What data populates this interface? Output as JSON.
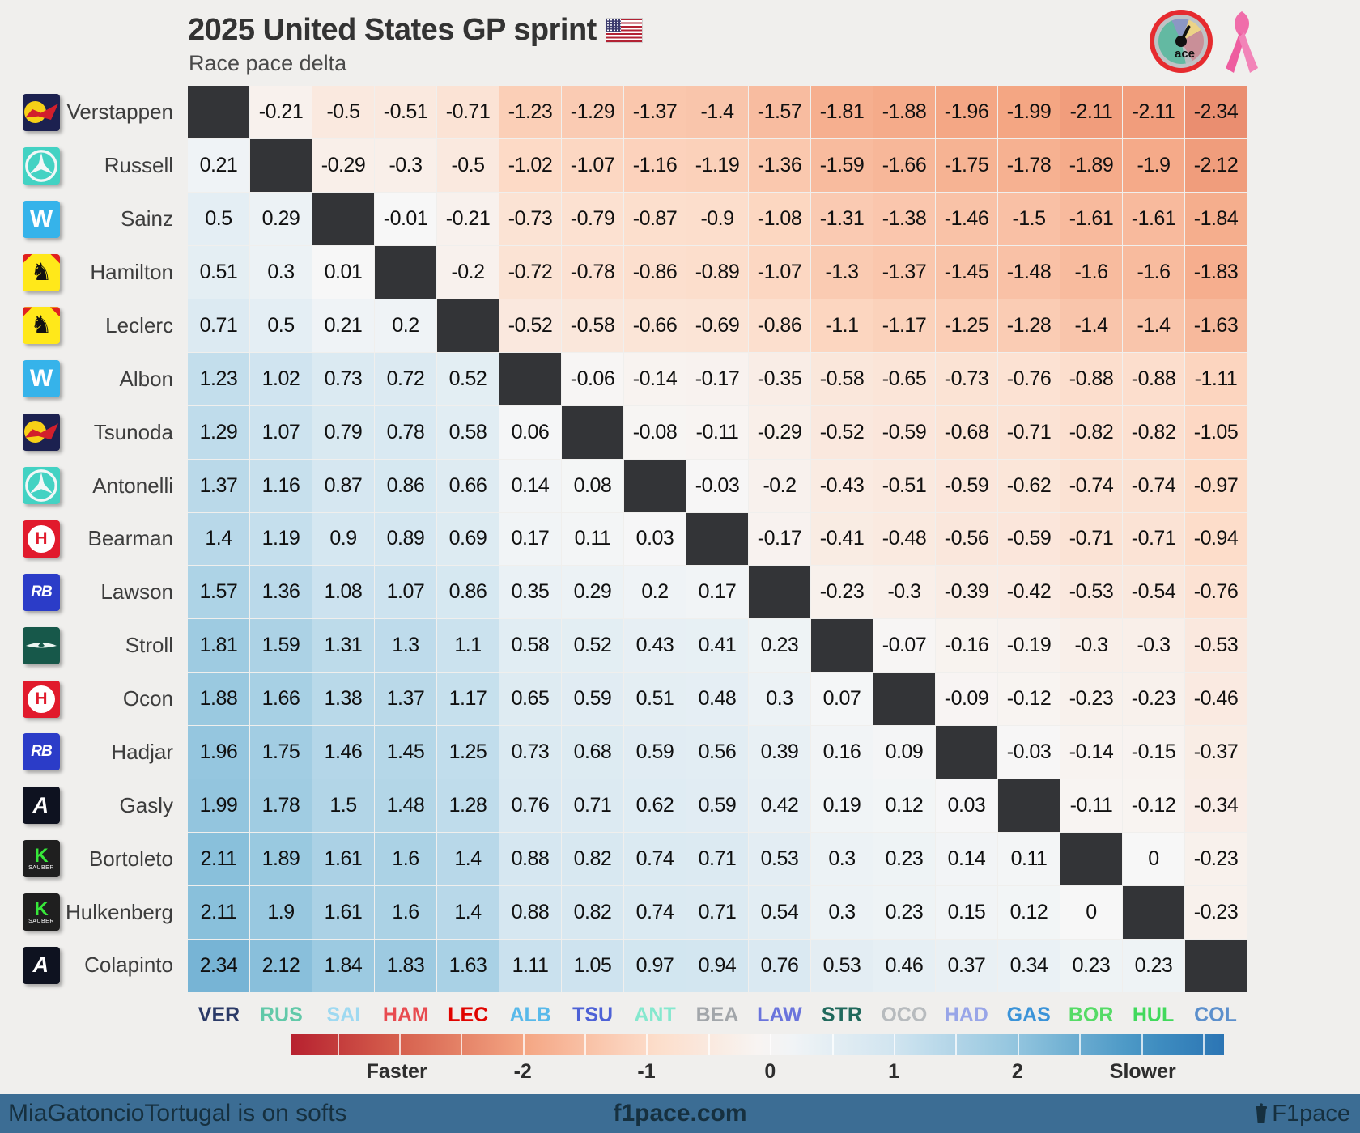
{
  "header": {
    "title": "2025 United States GP sprint",
    "subtitle": "Race pace delta"
  },
  "chart_data": {
    "type": "heatmap",
    "title": "2025 United States GP sprint",
    "subtitle": "Race pace delta",
    "row_labels": [
      "Verstappen",
      "Russell",
      "Sainz",
      "Hamilton",
      "Leclerc",
      "Albon",
      "Tsunoda",
      "Antonelli",
      "Bearman",
      "Lawson",
      "Stroll",
      "Ocon",
      "Hadjar",
      "Gasly",
      "Bortoleto",
      "Hulkenberg",
      "Colapinto"
    ],
    "column_labels": [
      "VER",
      "RUS",
      "SAI",
      "HAM",
      "LEC",
      "ALB",
      "TSU",
      "ANT",
      "BEA",
      "LAW",
      "STR",
      "OCO",
      "HAD",
      "GAS",
      "BOR",
      "HUL",
      "COL"
    ],
    "value_meaning": "race pace delta in seconds; negative = row driver faster than column driver",
    "values": [
      [
        null,
        -0.21,
        -0.5,
        -0.51,
        -0.71,
        -1.23,
        -1.29,
        -1.37,
        -1.4,
        -1.57,
        -1.81,
        -1.88,
        -1.96,
        -1.99,
        -2.11,
        -2.11,
        -2.34
      ],
      [
        0.21,
        null,
        -0.29,
        -0.3,
        -0.5,
        -1.02,
        -1.07,
        -1.16,
        -1.19,
        -1.36,
        -1.59,
        -1.66,
        -1.75,
        -1.78,
        -1.89,
        -1.9,
        -2.12
      ],
      [
        0.5,
        0.29,
        null,
        -0.01,
        -0.21,
        -0.73,
        -0.79,
        -0.87,
        -0.9,
        -1.08,
        -1.31,
        -1.38,
        -1.46,
        -1.5,
        -1.61,
        -1.61,
        -1.84
      ],
      [
        0.51,
        0.3,
        0.01,
        null,
        -0.2,
        -0.72,
        -0.78,
        -0.86,
        -0.89,
        -1.07,
        -1.3,
        -1.37,
        -1.45,
        -1.48,
        -1.6,
        -1.6,
        -1.83
      ],
      [
        0.71,
        0.5,
        0.21,
        0.2,
        null,
        -0.52,
        -0.58,
        -0.66,
        -0.69,
        -0.86,
        -1.1,
        -1.17,
        -1.25,
        -1.28,
        -1.4,
        -1.4,
        -1.63
      ],
      [
        1.23,
        1.02,
        0.73,
        0.72,
        0.52,
        null,
        -0.06,
        -0.14,
        -0.17,
        -0.35,
        -0.58,
        -0.65,
        -0.73,
        -0.76,
        -0.88,
        -0.88,
        -1.11
      ],
      [
        1.29,
        1.07,
        0.79,
        0.78,
        0.58,
        0.06,
        null,
        -0.08,
        -0.11,
        -0.29,
        -0.52,
        -0.59,
        -0.68,
        -0.71,
        -0.82,
        -0.82,
        -1.05
      ],
      [
        1.37,
        1.16,
        0.87,
        0.86,
        0.66,
        0.14,
        0.08,
        null,
        -0.03,
        -0.2,
        -0.43,
        -0.51,
        -0.59,
        -0.62,
        -0.74,
        -0.74,
        -0.97
      ],
      [
        1.4,
        1.19,
        0.9,
        0.89,
        0.69,
        0.17,
        0.11,
        0.03,
        null,
        -0.17,
        -0.41,
        -0.48,
        -0.56,
        -0.59,
        -0.71,
        -0.71,
        -0.94
      ],
      [
        1.57,
        1.36,
        1.08,
        1.07,
        0.86,
        0.35,
        0.29,
        0.2,
        0.17,
        null,
        -0.23,
        -0.3,
        -0.39,
        -0.42,
        -0.53,
        -0.54,
        -0.76
      ],
      [
        1.81,
        1.59,
        1.31,
        1.3,
        1.1,
        0.58,
        0.52,
        0.43,
        0.41,
        0.23,
        null,
        -0.07,
        -0.16,
        -0.19,
        -0.3,
        -0.3,
        -0.53
      ],
      [
        1.88,
        1.66,
        1.38,
        1.37,
        1.17,
        0.65,
        0.59,
        0.51,
        0.48,
        0.3,
        0.07,
        null,
        -0.09,
        -0.12,
        -0.23,
        -0.23,
        -0.46
      ],
      [
        1.96,
        1.75,
        1.46,
        1.45,
        1.25,
        0.73,
        0.68,
        0.59,
        0.56,
        0.39,
        0.16,
        0.09,
        null,
        -0.03,
        -0.14,
        -0.15,
        -0.37
      ],
      [
        1.99,
        1.78,
        1.5,
        1.48,
        1.28,
        0.76,
        0.71,
        0.62,
        0.59,
        0.42,
        0.19,
        0.12,
        0.03,
        null,
        -0.11,
        -0.12,
        -0.34
      ],
      [
        2.11,
        1.89,
        1.61,
        1.6,
        1.4,
        0.88,
        0.82,
        0.74,
        0.71,
        0.53,
        0.3,
        0.23,
        0.14,
        0.11,
        null,
        0,
        -0.23
      ],
      [
        2.11,
        1.9,
        1.61,
        1.6,
        1.4,
        0.88,
        0.82,
        0.74,
        0.71,
        0.54,
        0.3,
        0.23,
        0.15,
        0.12,
        0,
        null,
        -0.23
      ],
      [
        2.34,
        2.12,
        1.84,
        1.83,
        1.63,
        1.11,
        1.05,
        0.97,
        0.94,
        0.76,
        0.53,
        0.46,
        0.37,
        0.34,
        0.23,
        0.23,
        null
      ]
    ],
    "colormap": {
      "stops": [
        "#b2182b",
        "#d6604d",
        "#f4a582",
        "#fddbc7",
        "#f7f7f7",
        "#d1e5f0",
        "#92c5de",
        "#4393c3",
        "#2166ac"
      ],
      "value_range": [
        -4,
        4
      ],
      "diagonal_color": "#333437"
    },
    "legend": {
      "faster_label": "Faster",
      "slower_label": "Slower",
      "tick_values": [
        -2,
        -1,
        0,
        1,
        2
      ],
      "bar_value_range": [
        -3.87,
        3.67
      ]
    }
  },
  "drivers": [
    {
      "name": "Verstappen",
      "code": "VER",
      "team": "redbull",
      "code_color": "#2b3a67"
    },
    {
      "name": "Russell",
      "code": "RUS",
      "team": "mercedes",
      "code_color": "#62c9a9"
    },
    {
      "name": "Sainz",
      "code": "SAI",
      "team": "williams",
      "code_color": "#9ed9f1"
    },
    {
      "name": "Hamilton",
      "code": "HAM",
      "team": "ferrari",
      "code_color": "#e84b50"
    },
    {
      "name": "Leclerc",
      "code": "LEC",
      "team": "ferrari",
      "code_color": "#e00400"
    },
    {
      "name": "Albon",
      "code": "ALB",
      "team": "williams",
      "code_color": "#58b9ea"
    },
    {
      "name": "Tsunoda",
      "code": "TSU",
      "team": "redbull",
      "code_color": "#4d61d6"
    },
    {
      "name": "Antonelli",
      "code": "ANT",
      "team": "mercedes",
      "code_color": "#85e8ce"
    },
    {
      "name": "Bearman",
      "code": "BEA",
      "team": "haas",
      "code_color": "#a2a6aa"
    },
    {
      "name": "Lawson",
      "code": "LAW",
      "team": "racingbulls",
      "code_color": "#6a74dc"
    },
    {
      "name": "Stroll",
      "code": "STR",
      "team": "astonmartin",
      "code_color": "#20695c"
    },
    {
      "name": "Ocon",
      "code": "OCO",
      "team": "haas",
      "code_color": "#b7bbbe"
    },
    {
      "name": "Hadjar",
      "code": "HAD",
      "team": "racingbulls",
      "code_color": "#98a5e8"
    },
    {
      "name": "Gasly",
      "code": "GAS",
      "team": "alpine",
      "code_color": "#3a93d8"
    },
    {
      "name": "Bortoleto",
      "code": "BOR",
      "team": "sauber",
      "code_color": "#55db66"
    },
    {
      "name": "Hulkenberg",
      "code": "HUL",
      "team": "sauber",
      "code_color": "#41d95c"
    },
    {
      "name": "Colapinto",
      "code": "COL",
      "team": "alpine",
      "code_color": "#5b8fcc"
    }
  ],
  "footer": {
    "left": "MiaGatoncioTortugal is on softs",
    "center": "f1pace.com",
    "right": "F1pace",
    "bg_color": "#3c6d94",
    "text_color": "#16303f"
  }
}
